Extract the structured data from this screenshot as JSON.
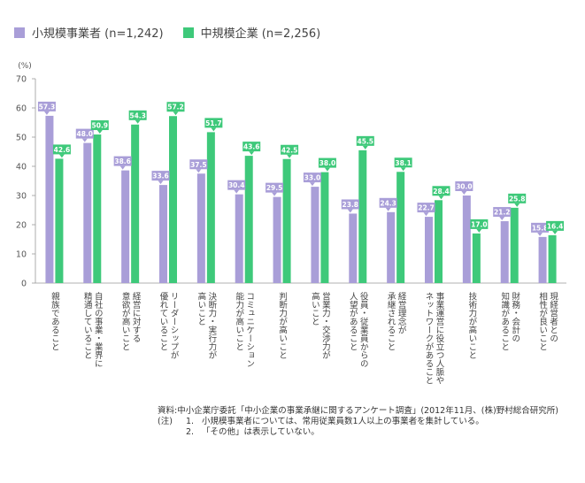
{
  "legend": {
    "series0": "小規模事業者 (n=1,242)",
    "series1": "中規模企業 (n=2,256)"
  },
  "chart_data": {
    "type": "bar",
    "unit_label": "(%)",
    "ylim": [
      0,
      70
    ],
    "yticks": [
      0,
      10,
      20,
      30,
      40,
      50,
      60,
      70
    ],
    "categories": [
      [
        "親族であること"
      ],
      [
        "自社の事業・業界に",
        "精通していること"
      ],
      [
        "経営に対する",
        "意欲が高いこと"
      ],
      [
        "リーダーシップが",
        "優れていること"
      ],
      [
        "決断力・実行力が",
        "高いこと"
      ],
      [
        "コミュニケーション",
        "能力が高いこと"
      ],
      [
        "判断力が高いこと"
      ],
      [
        "営業力・交渉力が",
        "高いこと"
      ],
      [
        "役員・従業員からの",
        "人望があること"
      ],
      [
        "経営理念が",
        "承継されること"
      ],
      [
        "事業運営に役立つ人脈や",
        "ネットワークがあること"
      ],
      [
        "技術力が高いこと"
      ],
      [
        "財務・会計の",
        "知識があること"
      ],
      [
        "現経営者との",
        "相性が良いこと"
      ]
    ],
    "series": [
      {
        "name": "小規模事業者 (n=1,242)",
        "color": "#a99ed8",
        "values": [
          57.3,
          48.0,
          38.6,
          33.6,
          37.5,
          30.4,
          29.5,
          33.0,
          23.8,
          24.3,
          22.7,
          30.0,
          21.2,
          15.8
        ]
      },
      {
        "name": "中規模企業 (n=2,256)",
        "color": "#3ec97a",
        "values": [
          42.6,
          50.9,
          54.3,
          57.2,
          51.7,
          43.6,
          42.5,
          38.0,
          45.5,
          38.1,
          28.4,
          17.0,
          25.8,
          16.4
        ]
      }
    ]
  },
  "notes": {
    "source_label": "資料:",
    "source_text": "中小企業庁委託「中小企業の事業承継に関するアンケート調査」(2012年11月、(株)野村総合研究所)",
    "note_label": "(注)",
    "note1_num": "1.",
    "note1_text": "小規模事業者については、常用従業員数1人以上の事業者を集計している。",
    "note2_num": "2.",
    "note2_text": "「その他」は表示していない。"
  }
}
